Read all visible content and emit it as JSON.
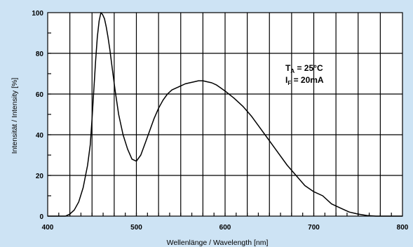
{
  "colors": {
    "background": "#cde3f4",
    "plot_background": "#ffffff",
    "grid": "#000000",
    "line": "#000000"
  },
  "chart_data": {
    "type": "line",
    "title": "",
    "xlabel": "Wellenlänge / Wavelength [nm]",
    "ylabel": "Intensität / Intensity [%]",
    "xlim": [
      400,
      800
    ],
    "ylim": [
      0,
      100
    ],
    "xticks": [
      400,
      500,
      600,
      700,
      800
    ],
    "yticks": [
      0,
      20,
      40,
      60,
      80,
      100
    ],
    "x_tick_labels": [
      "400",
      "500",
      "600",
      "700",
      "800"
    ],
    "y_tick_labels": [
      "0",
      "20",
      "40",
      "60",
      "80",
      "100"
    ],
    "grid": true,
    "legend": "none",
    "annotations": [
      {
        "main": "T",
        "sub": "A",
        "rest": " = 25°C"
      },
      {
        "main": "I",
        "sub": "F",
        "rest": " = 20mA"
      }
    ],
    "series": [
      {
        "x": [
          400,
          420,
          425,
          430,
          435,
          440,
          445,
          448,
          450,
          452,
          454,
          456,
          458,
          460,
          462,
          464,
          466,
          468,
          470,
          473,
          476,
          480,
          485,
          490,
          495,
          500,
          505,
          510,
          515,
          520,
          525,
          530,
          535,
          540,
          545,
          550,
          555,
          560,
          565,
          570,
          575,
          580,
          585,
          590,
          595,
          600,
          610,
          620,
          630,
          640,
          650,
          660,
          670,
          680,
          690,
          700,
          710,
          720,
          730,
          740,
          750,
          760,
          770,
          780,
          790,
          800
        ],
        "y": [
          0,
          0,
          1,
          3,
          7,
          14,
          25,
          35,
          48,
          62,
          76,
          88,
          96,
          100,
          99,
          97,
          93,
          88,
          82,
          72,
          62,
          50,
          40,
          33,
          28,
          27,
          30,
          36,
          42,
          48,
          53,
          57,
          60,
          62,
          63,
          64,
          65,
          65.5,
          66,
          66.5,
          66.5,
          66,
          65.5,
          64.5,
          63,
          61.5,
          58,
          54,
          49,
          43,
          37,
          31,
          25,
          20,
          15,
          12,
          10,
          6,
          4,
          2,
          1,
          0.3,
          0,
          0,
          0,
          0
        ]
      }
    ]
  }
}
